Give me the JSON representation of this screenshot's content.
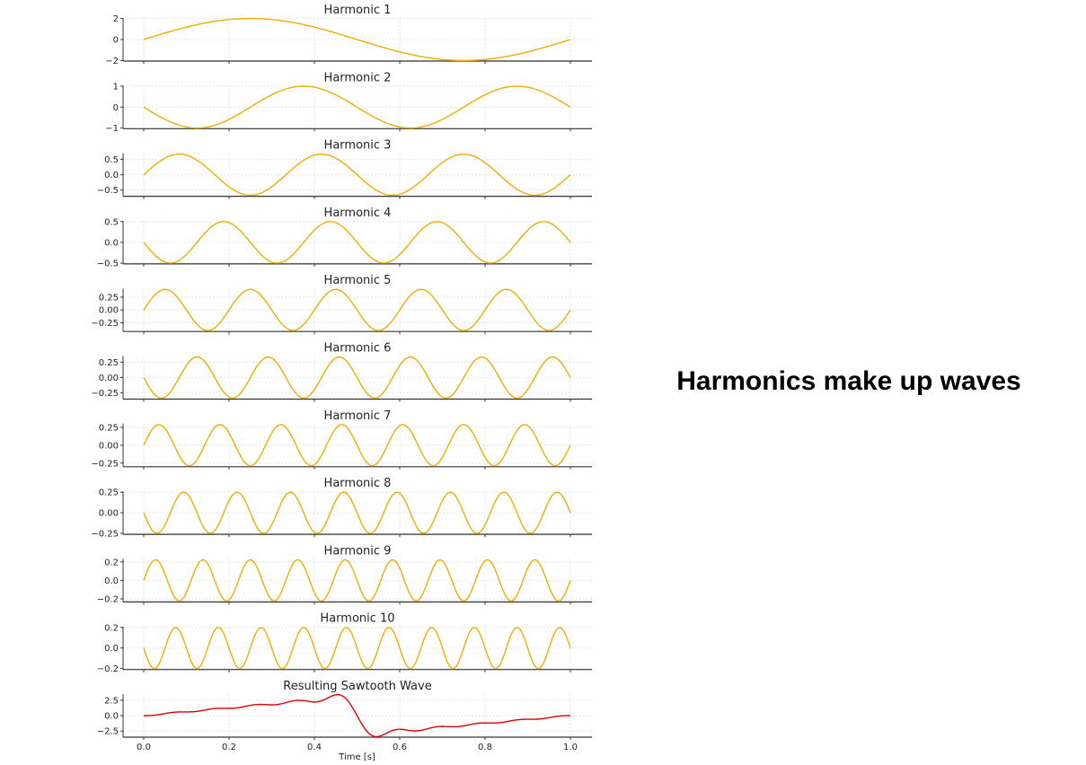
{
  "slide": {
    "heading": "Harmonics make up waves"
  },
  "colors": {
    "harmonic": "#f0ad00",
    "result": "#e00000",
    "axis": "#333333",
    "grid": "#e6e6e6",
    "text": "#222222"
  },
  "chart_data": [
    {
      "type": "line",
      "title": "Harmonic 1",
      "harmonic": 1,
      "amplitude": 2.0,
      "ylim": [
        -2.05,
        2.05
      ],
      "yticks": [
        "2",
        "0",
        "−2"
      ],
      "ytick_values": [
        2,
        0,
        -2
      ],
      "grid": true
    },
    {
      "type": "line",
      "title": "Harmonic 2",
      "harmonic": 2,
      "amplitude": 1.0,
      "ylim": [
        -1.03,
        1.03
      ],
      "yticks": [
        "1",
        "0",
        "−1"
      ],
      "ytick_values": [
        1,
        0,
        -1
      ],
      "grid": true
    },
    {
      "type": "line",
      "title": "Harmonic 3",
      "harmonic": 3,
      "amplitude": 0.667,
      "ylim": [
        -0.7,
        0.7
      ],
      "yticks": [
        "0.5",
        "0.0",
        "−0.5"
      ],
      "ytick_values": [
        0.5,
        0,
        -0.5
      ],
      "grid": true
    },
    {
      "type": "line",
      "title": "Harmonic 4",
      "harmonic": 4,
      "amplitude": 0.5,
      "ylim": [
        -0.52,
        0.52
      ],
      "yticks": [
        "0.5",
        "0.0",
        "−0.5"
      ],
      "ytick_values": [
        0.5,
        0,
        -0.5
      ],
      "grid": true
    },
    {
      "type": "line",
      "title": "Harmonic 5",
      "harmonic": 5,
      "amplitude": 0.4,
      "ylim": [
        -0.42,
        0.42
      ],
      "yticks": [
        "0.25",
        "0.00",
        "−0.25"
      ],
      "ytick_values": [
        0.25,
        0,
        -0.25
      ],
      "grid": true
    },
    {
      "type": "line",
      "title": "Harmonic 6",
      "harmonic": 6,
      "amplitude": 0.333,
      "ylim": [
        -0.35,
        0.35
      ],
      "yticks": [
        "0.25",
        "0.00",
        "−0.25"
      ],
      "ytick_values": [
        0.25,
        0,
        -0.25
      ],
      "grid": true
    },
    {
      "type": "line",
      "title": "Harmonic 7",
      "harmonic": 7,
      "amplitude": 0.286,
      "ylim": [
        -0.3,
        0.3
      ],
      "yticks": [
        "0.25",
        "0.00",
        "−0.25"
      ],
      "ytick_values": [
        0.25,
        0,
        -0.25
      ],
      "grid": true
    },
    {
      "type": "line",
      "title": "Harmonic 8",
      "harmonic": 8,
      "amplitude": 0.25,
      "ylim": [
        -0.262,
        0.262
      ],
      "yticks": [
        "0.25",
        "0.00",
        "−0.25"
      ],
      "ytick_values": [
        0.25,
        0,
        -0.25
      ],
      "grid": true
    },
    {
      "type": "line",
      "title": "Harmonic 9",
      "harmonic": 9,
      "amplitude": 0.222,
      "ylim": [
        -0.233,
        0.233
      ],
      "yticks": [
        "0.2",
        "0.0",
        "−0.2"
      ],
      "ytick_values": [
        0.2,
        0,
        -0.2
      ],
      "grid": true
    },
    {
      "type": "line",
      "title": "Harmonic 10",
      "harmonic": 10,
      "amplitude": 0.2,
      "ylim": [
        -0.21,
        0.21
      ],
      "yticks": [
        "0.2",
        "0.0",
        "−0.2"
      ],
      "ytick_values": [
        0.2,
        0,
        -0.2
      ],
      "grid": true
    },
    {
      "type": "line",
      "title": "Resulting Sawtooth Wave",
      "harmonics_summed": 10,
      "ylim": [
        -3.5,
        3.5
      ],
      "yticks": [
        "2.5",
        "0.0",
        "−2.5"
      ],
      "ytick_values": [
        2.5,
        0,
        -2.5
      ],
      "grid": true,
      "xlabel": "Time [s]",
      "xticks": [
        "0.0",
        "0.2",
        "0.4",
        "0.6",
        "0.8",
        "1.0"
      ]
    }
  ],
  "x_range": [
    0,
    1
  ]
}
